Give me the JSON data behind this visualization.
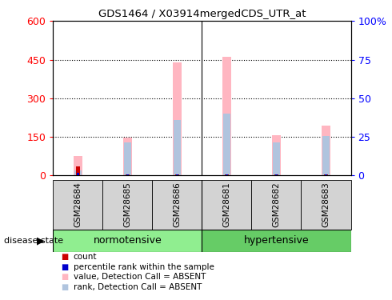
{
  "title": "GDS1464 / X03914mergedCDS_UTR_at",
  "samples": [
    "GSM28684",
    "GSM28685",
    "GSM28686",
    "GSM28681",
    "GSM28682",
    "GSM28683"
  ],
  "value_absent": [
    75,
    148,
    440,
    460,
    158,
    195
  ],
  "rank_absent": [
    20,
    130,
    215,
    240,
    130,
    152
  ],
  "count_red": [
    35,
    5,
    5,
    5,
    5,
    5
  ],
  "percentile_blue": [
    12,
    5,
    5,
    5,
    5,
    5
  ],
  "ylim_left": [
    0,
    600
  ],
  "ylim_right": [
    0,
    100
  ],
  "yticks_left": [
    0,
    150,
    300,
    450,
    600
  ],
  "ytick_labels_left": [
    "0",
    "150",
    "300",
    "450",
    "600"
  ],
  "yticks_right": [
    0,
    25,
    50,
    75,
    100
  ],
  "ytick_labels_right": [
    "0",
    "25",
    "50",
    "75",
    "100%"
  ],
  "color_value_absent": "#FFB6C1",
  "color_rank_absent": "#B0C4DE",
  "color_count": "#CC0000",
  "color_percentile": "#0000CC",
  "legend_items": [
    {
      "label": "count",
      "color": "#CC0000"
    },
    {
      "label": "percentile rank within the sample",
      "color": "#0000CC"
    },
    {
      "label": "value, Detection Call = ABSENT",
      "color": "#FFB6C1"
    },
    {
      "label": "rank, Detection Call = ABSENT",
      "color": "#B0C4DE"
    }
  ],
  "label_bg_norm": "#90EE90",
  "label_bg_hyp": "#66CC66",
  "label_bg_sample": "#D3D3D3"
}
